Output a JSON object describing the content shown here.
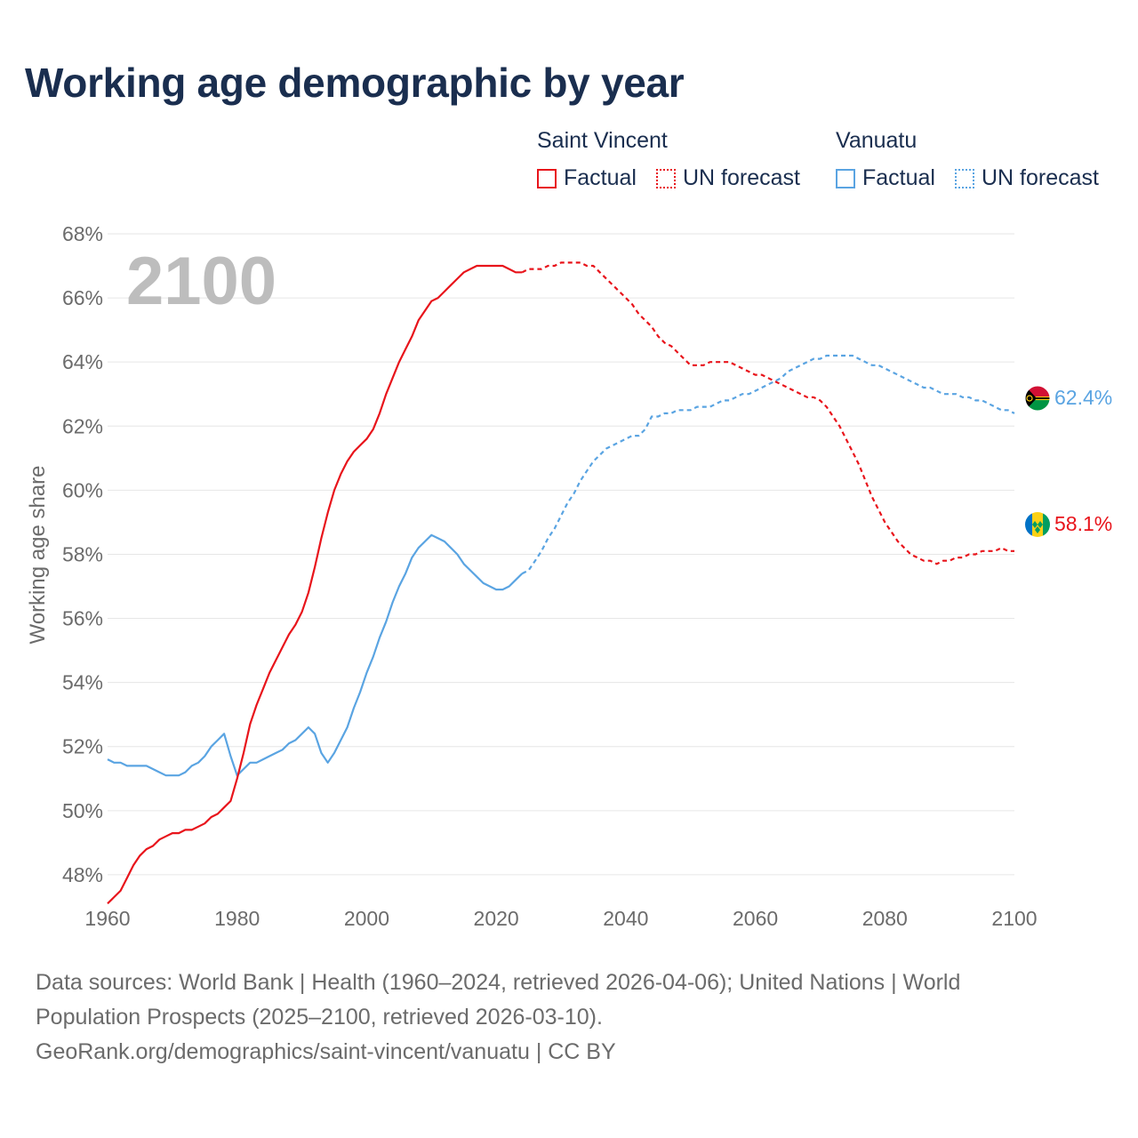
{
  "title": "Working age demographic by year",
  "legend": {
    "series": [
      {
        "country": "Saint Vincent",
        "factual_label": "Factual",
        "forecast_label": "UN forecast",
        "color": "#e8141b"
      },
      {
        "country": "Vanuatu",
        "factual_label": "Factual",
        "forecast_label": "UN forecast",
        "color": "#5aa4e2"
      }
    ]
  },
  "year_overlay": "2100",
  "end_labels": {
    "vanuatu": "62.4%",
    "saint_vincent": "58.1%"
  },
  "sources": {
    "line1": "Data sources: World Bank | Health (1960–2024, retrieved 2026-04-06); United Nations | World",
    "line2": "Population Prospects (2025–2100, retrieved 2026-03-10).",
    "line3": "GeoRank.org/demographics/saint-vincent/vanuatu | CC BY"
  },
  "chart_data": {
    "type": "line",
    "title": "Working age demographic by year",
    "xlabel": "",
    "ylabel": "Working age share",
    "xlim": [
      1960,
      2100
    ],
    "ylim": [
      46,
      68
    ],
    "x_ticks": [
      1960,
      1980,
      2000,
      2020,
      2040,
      2060,
      2080,
      2100
    ],
    "y_ticks": [
      48,
      50,
      52,
      54,
      56,
      58,
      60,
      62,
      64,
      66,
      68
    ],
    "y_tick_labels": [
      "48%",
      "50%",
      "52%",
      "54%",
      "56%",
      "58%",
      "60%",
      "62%",
      "64%",
      "66%",
      "68%"
    ],
    "forecast_start": 2024,
    "grid": true,
    "series": [
      {
        "name": "Saint Vincent",
        "color": "#e8141b",
        "factual": [
          [
            1960,
            47.1
          ],
          [
            1962,
            47.5
          ],
          [
            1963,
            47.9
          ],
          [
            1964,
            48.3
          ],
          [
            1965,
            48.6
          ],
          [
            1966,
            48.8
          ],
          [
            1967,
            48.9
          ],
          [
            1968,
            49.1
          ],
          [
            1969,
            49.2
          ],
          [
            1970,
            49.3
          ],
          [
            1971,
            49.3
          ],
          [
            1972,
            49.4
          ],
          [
            1973,
            49.4
          ],
          [
            1974,
            49.5
          ],
          [
            1975,
            49.6
          ],
          [
            1976,
            49.8
          ],
          [
            1977,
            49.9
          ],
          [
            1978,
            50.1
          ],
          [
            1979,
            50.3
          ],
          [
            1980,
            51.0
          ],
          [
            1981,
            51.8
          ],
          [
            1982,
            52.7
          ],
          [
            1983,
            53.3
          ],
          [
            1984,
            53.8
          ],
          [
            1985,
            54.3
          ],
          [
            1986,
            54.7
          ],
          [
            1987,
            55.1
          ],
          [
            1988,
            55.5
          ],
          [
            1989,
            55.8
          ],
          [
            1990,
            56.2
          ],
          [
            1991,
            56.8
          ],
          [
            1992,
            57.6
          ],
          [
            1993,
            58.5
          ],
          [
            1994,
            59.3
          ],
          [
            1995,
            60.0
          ],
          [
            1996,
            60.5
          ],
          [
            1997,
            60.9
          ],
          [
            1998,
            61.2
          ],
          [
            1999,
            61.4
          ],
          [
            2000,
            61.6
          ],
          [
            2001,
            61.9
          ],
          [
            2002,
            62.4
          ],
          [
            2003,
            63.0
          ],
          [
            2004,
            63.5
          ],
          [
            2005,
            64.0
          ],
          [
            2006,
            64.4
          ],
          [
            2007,
            64.8
          ],
          [
            2008,
            65.3
          ],
          [
            2009,
            65.6
          ],
          [
            2010,
            65.9
          ],
          [
            2011,
            66.0
          ],
          [
            2012,
            66.2
          ],
          [
            2013,
            66.4
          ],
          [
            2014,
            66.6
          ],
          [
            2015,
            66.8
          ],
          [
            2016,
            66.9
          ],
          [
            2017,
            67.0
          ],
          [
            2018,
            67.0
          ],
          [
            2019,
            67.0
          ],
          [
            2020,
            67.0
          ],
          [
            2021,
            67.0
          ],
          [
            2022,
            66.9
          ],
          [
            2023,
            66.8
          ],
          [
            2024,
            66.8
          ]
        ],
        "forecast": [
          [
            2024,
            66.8
          ],
          [
            2025,
            66.9
          ],
          [
            2026,
            66.9
          ],
          [
            2027,
            66.9
          ],
          [
            2028,
            67.0
          ],
          [
            2029,
            67.0
          ],
          [
            2030,
            67.1
          ],
          [
            2031,
            67.1
          ],
          [
            2032,
            67.1
          ],
          [
            2033,
            67.1
          ],
          [
            2034,
            67.0
          ],
          [
            2035,
            67.0
          ],
          [
            2036,
            66.8
          ],
          [
            2037,
            66.6
          ],
          [
            2038,
            66.4
          ],
          [
            2039,
            66.2
          ],
          [
            2040,
            66.0
          ],
          [
            2041,
            65.8
          ],
          [
            2042,
            65.5
          ],
          [
            2043,
            65.3
          ],
          [
            2044,
            65.1
          ],
          [
            2045,
            64.8
          ],
          [
            2046,
            64.6
          ],
          [
            2047,
            64.5
          ],
          [
            2048,
            64.3
          ],
          [
            2049,
            64.1
          ],
          [
            2050,
            63.9
          ],
          [
            2051,
            63.9
          ],
          [
            2052,
            63.9
          ],
          [
            2053,
            64.0
          ],
          [
            2054,
            64.0
          ],
          [
            2055,
            64.0
          ],
          [
            2056,
            64.0
          ],
          [
            2057,
            63.9
          ],
          [
            2058,
            63.8
          ],
          [
            2059,
            63.7
          ],
          [
            2060,
            63.6
          ],
          [
            2061,
            63.6
          ],
          [
            2062,
            63.5
          ],
          [
            2063,
            63.4
          ],
          [
            2064,
            63.3
          ],
          [
            2065,
            63.2
          ],
          [
            2066,
            63.1
          ],
          [
            2067,
            63.0
          ],
          [
            2068,
            62.9
          ],
          [
            2069,
            62.9
          ],
          [
            2070,
            62.8
          ],
          [
            2071,
            62.6
          ],
          [
            2072,
            62.3
          ],
          [
            2073,
            62.0
          ],
          [
            2074,
            61.6
          ],
          [
            2075,
            61.2
          ],
          [
            2076,
            60.8
          ],
          [
            2077,
            60.3
          ],
          [
            2078,
            59.8
          ],
          [
            2079,
            59.4
          ],
          [
            2080,
            59.0
          ],
          [
            2081,
            58.7
          ],
          [
            2082,
            58.4
          ],
          [
            2083,
            58.2
          ],
          [
            2084,
            58.0
          ],
          [
            2085,
            57.9
          ],
          [
            2086,
            57.8
          ],
          [
            2087,
            57.8
          ],
          [
            2088,
            57.7
          ],
          [
            2089,
            57.8
          ],
          [
            2090,
            57.8
          ],
          [
            2091,
            57.9
          ],
          [
            2092,
            57.9
          ],
          [
            2093,
            58.0
          ],
          [
            2094,
            58.0
          ],
          [
            2095,
            58.1
          ],
          [
            2096,
            58.1
          ],
          [
            2097,
            58.1
          ],
          [
            2098,
            58.2
          ],
          [
            2099,
            58.1
          ],
          [
            2100,
            58.1
          ]
        ]
      },
      {
        "name": "Vanuatu",
        "color": "#5aa4e2",
        "factual": [
          [
            1960,
            51.6
          ],
          [
            1961,
            51.5
          ],
          [
            1962,
            51.5
          ],
          [
            1963,
            51.4
          ],
          [
            1964,
            51.4
          ],
          [
            1965,
            51.4
          ],
          [
            1966,
            51.4
          ],
          [
            1967,
            51.3
          ],
          [
            1968,
            51.2
          ],
          [
            1969,
            51.1
          ],
          [
            1970,
            51.1
          ],
          [
            1971,
            51.1
          ],
          [
            1972,
            51.2
          ],
          [
            1973,
            51.4
          ],
          [
            1974,
            51.5
          ],
          [
            1975,
            51.7
          ],
          [
            1976,
            52.0
          ],
          [
            1977,
            52.2
          ],
          [
            1978,
            52.4
          ],
          [
            1979,
            51.7
          ],
          [
            1980,
            51.1
          ],
          [
            1981,
            51.3
          ],
          [
            1982,
            51.5
          ],
          [
            1983,
            51.5
          ],
          [
            1984,
            51.6
          ],
          [
            1985,
            51.7
          ],
          [
            1986,
            51.8
          ],
          [
            1987,
            51.9
          ],
          [
            1988,
            52.1
          ],
          [
            1989,
            52.2
          ],
          [
            1990,
            52.4
          ],
          [
            1991,
            52.6
          ],
          [
            1992,
            52.4
          ],
          [
            1993,
            51.8
          ],
          [
            1994,
            51.5
          ],
          [
            1995,
            51.8
          ],
          [
            1996,
            52.2
          ],
          [
            1997,
            52.6
          ],
          [
            1998,
            53.2
          ],
          [
            1999,
            53.7
          ],
          [
            2000,
            54.3
          ],
          [
            2001,
            54.8
          ],
          [
            2002,
            55.4
          ],
          [
            2003,
            55.9
          ],
          [
            2004,
            56.5
          ],
          [
            2005,
            57.0
          ],
          [
            2006,
            57.4
          ],
          [
            2007,
            57.9
          ],
          [
            2008,
            58.2
          ],
          [
            2009,
            58.4
          ],
          [
            2010,
            58.6
          ],
          [
            2011,
            58.5
          ],
          [
            2012,
            58.4
          ],
          [
            2013,
            58.2
          ],
          [
            2014,
            58.0
          ],
          [
            2015,
            57.7
          ],
          [
            2016,
            57.5
          ],
          [
            2017,
            57.3
          ],
          [
            2018,
            57.1
          ],
          [
            2019,
            57.0
          ],
          [
            2020,
            56.9
          ],
          [
            2021,
            56.9
          ],
          [
            2022,
            57.0
          ],
          [
            2023,
            57.2
          ],
          [
            2024,
            57.4
          ]
        ],
        "forecast": [
          [
            2024,
            57.4
          ],
          [
            2025,
            57.5
          ],
          [
            2026,
            57.8
          ],
          [
            2027,
            58.1
          ],
          [
            2028,
            58.5
          ],
          [
            2029,
            58.8
          ],
          [
            2030,
            59.2
          ],
          [
            2031,
            59.6
          ],
          [
            2032,
            59.9
          ],
          [
            2033,
            60.3
          ],
          [
            2034,
            60.6
          ],
          [
            2035,
            60.9
          ],
          [
            2036,
            61.1
          ],
          [
            2037,
            61.3
          ],
          [
            2038,
            61.4
          ],
          [
            2039,
            61.5
          ],
          [
            2040,
            61.6
          ],
          [
            2041,
            61.7
          ],
          [
            2042,
            61.7
          ],
          [
            2043,
            61.9
          ],
          [
            2044,
            62.3
          ],
          [
            2045,
            62.3
          ],
          [
            2046,
            62.4
          ],
          [
            2047,
            62.4
          ],
          [
            2048,
            62.5
          ],
          [
            2049,
            62.5
          ],
          [
            2050,
            62.5
          ],
          [
            2051,
            62.6
          ],
          [
            2052,
            62.6
          ],
          [
            2053,
            62.6
          ],
          [
            2054,
            62.7
          ],
          [
            2055,
            62.8
          ],
          [
            2056,
            62.8
          ],
          [
            2057,
            62.9
          ],
          [
            2058,
            63.0
          ],
          [
            2059,
            63.0
          ],
          [
            2060,
            63.1
          ],
          [
            2061,
            63.2
          ],
          [
            2062,
            63.3
          ],
          [
            2063,
            63.4
          ],
          [
            2064,
            63.5
          ],
          [
            2065,
            63.7
          ],
          [
            2066,
            63.8
          ],
          [
            2067,
            63.9
          ],
          [
            2068,
            64.0
          ],
          [
            2069,
            64.1
          ],
          [
            2070,
            64.1
          ],
          [
            2071,
            64.2
          ],
          [
            2072,
            64.2
          ],
          [
            2073,
            64.2
          ],
          [
            2074,
            64.2
          ],
          [
            2075,
            64.2
          ],
          [
            2076,
            64.1
          ],
          [
            2077,
            64.0
          ],
          [
            2078,
            63.9
          ],
          [
            2079,
            63.9
          ],
          [
            2080,
            63.8
          ],
          [
            2081,
            63.7
          ],
          [
            2082,
            63.6
          ],
          [
            2083,
            63.5
          ],
          [
            2084,
            63.4
          ],
          [
            2085,
            63.3
          ],
          [
            2086,
            63.2
          ],
          [
            2087,
            63.2
          ],
          [
            2088,
            63.1
          ],
          [
            2089,
            63.0
          ],
          [
            2090,
            63.0
          ],
          [
            2091,
            63.0
          ],
          [
            2092,
            62.9
          ],
          [
            2093,
            62.9
          ],
          [
            2094,
            62.8
          ],
          [
            2095,
            62.8
          ],
          [
            2096,
            62.7
          ],
          [
            2097,
            62.6
          ],
          [
            2098,
            62.5
          ],
          [
            2099,
            62.5
          ],
          [
            2100,
            62.4
          ]
        ]
      }
    ]
  }
}
